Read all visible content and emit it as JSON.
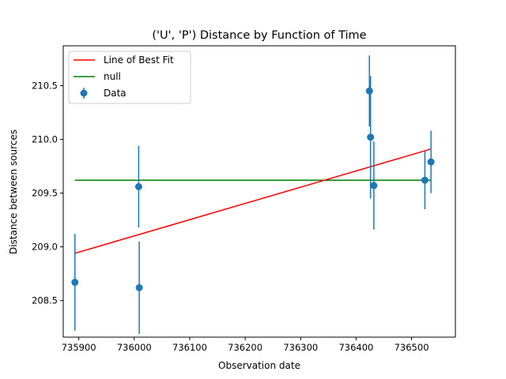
{
  "chart_data": {
    "type": "scatter",
    "title": "('U', 'P') Distance by Function of Time",
    "xlabel": "Observation date",
    "ylabel": "Distance between sources",
    "xlim": [
      735872,
      736579
    ],
    "ylim": [
      208.16,
      210.87
    ],
    "xticks": [
      735900,
      736000,
      736100,
      736200,
      736300,
      736400,
      736500
    ],
    "yticks": [
      208.5,
      209.0,
      209.5,
      210.0,
      210.5
    ],
    "ytick_labels": [
      "208.5",
      "209.0",
      "209.5",
      "210.0",
      "210.5"
    ],
    "grid": false,
    "legend_position": "top-left",
    "legend": [
      {
        "label": "Line of Best Fit",
        "kind": "line",
        "color": "#ff0000"
      },
      {
        "label": "null",
        "kind": "line",
        "color": "#008000"
      },
      {
        "label": "Data",
        "kind": "errorbar",
        "color": "#1f77b4"
      }
    ],
    "points": [
      {
        "x": 735893,
        "y": 208.67,
        "yerr": 0.45
      },
      {
        "x": 736008,
        "y": 209.56,
        "yerr": 0.38
      },
      {
        "x": 736009,
        "y": 208.62,
        "yerr": 0.43
      },
      {
        "x": 736424,
        "y": 210.45,
        "yerr": 0.33
      },
      {
        "x": 736426,
        "y": 210.02,
        "yerr": 0.57
      },
      {
        "x": 736432,
        "y": 209.57,
        "yerr": 0.41
      },
      {
        "x": 736524,
        "y": 209.62,
        "yerr": 0.27
      },
      {
        "x": 736535,
        "y": 209.79,
        "yerr": 0.29
      }
    ],
    "fit_line": {
      "x": [
        735893,
        736535
      ],
      "y": [
        208.94,
        209.91
      ]
    },
    "null_line": {
      "x": [
        735893,
        736535
      ],
      "y": [
        209.62,
        209.62
      ]
    }
  },
  "colors": {
    "fit": "#ff0000",
    "null": "#008000",
    "data": "#1f77b4",
    "axis": "#000000"
  }
}
